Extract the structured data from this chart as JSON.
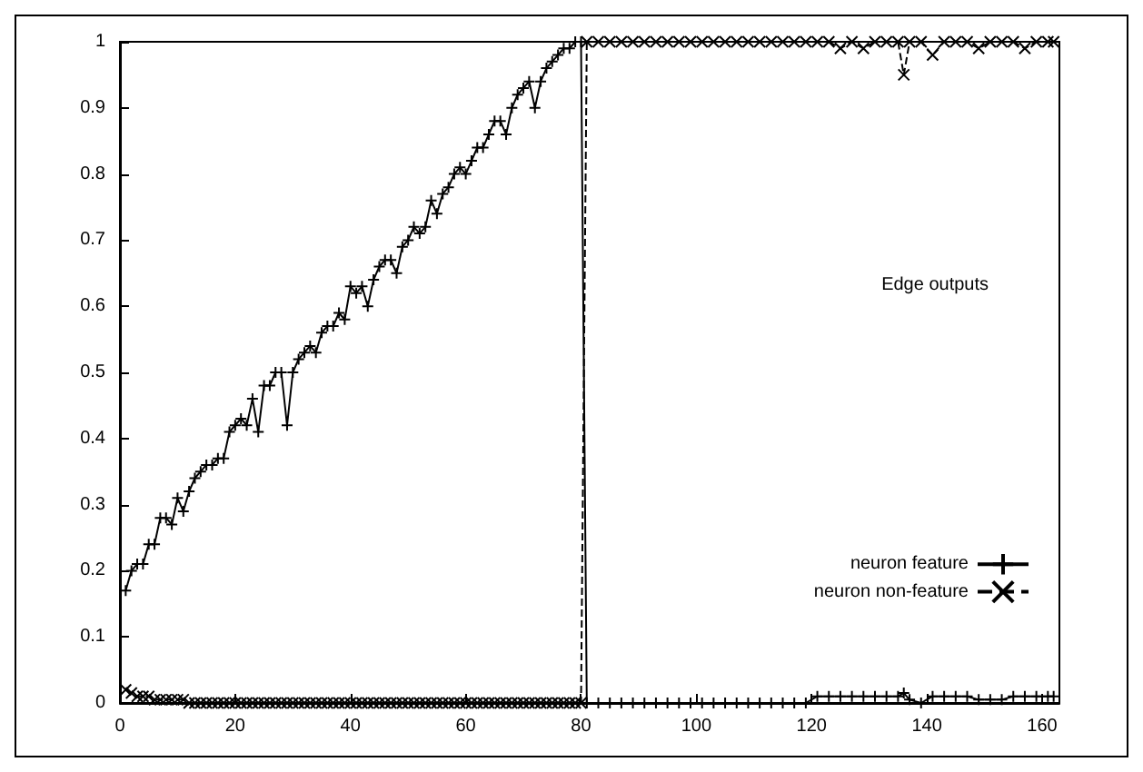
{
  "chart_data": {
    "type": "line",
    "annotations": [
      "Edge outputs"
    ],
    "x": [
      1,
      2,
      3,
      4,
      5,
      6,
      7,
      8,
      9,
      10,
      11,
      12,
      13,
      14,
      15,
      16,
      17,
      18,
      19,
      20,
      21,
      22,
      23,
      24,
      25,
      26,
      27,
      28,
      29,
      30,
      31,
      32,
      33,
      34,
      35,
      36,
      37,
      38,
      39,
      40,
      41,
      42,
      43,
      44,
      45,
      46,
      47,
      48,
      49,
      50,
      51,
      52,
      53,
      54,
      55,
      56,
      57,
      58,
      59,
      60,
      61,
      62,
      63,
      64,
      65,
      66,
      67,
      68,
      69,
      70,
      71,
      72,
      73,
      74,
      75,
      76,
      77,
      78,
      79,
      80,
      81,
      83,
      85,
      87,
      89,
      91,
      93,
      95,
      97,
      99,
      101,
      103,
      105,
      107,
      109,
      111,
      113,
      115,
      117,
      119,
      121,
      123,
      125,
      127,
      129,
      131,
      133,
      135,
      136,
      137,
      139,
      141,
      143,
      145,
      147,
      149,
      151,
      153,
      155,
      157,
      159,
      161,
      162
    ],
    "series": [
      {
        "name": "neuron feature",
        "color": "#000000",
        "marker": "cross",
        "line_style": "solid",
        "values": [
          0.17,
          0.2,
          0.21,
          0.21,
          0.24,
          0.24,
          0.28,
          0.28,
          0.27,
          0.31,
          0.29,
          0.32,
          0.34,
          0.35,
          0.36,
          0.36,
          0.37,
          0.37,
          0.41,
          0.42,
          0.43,
          0.42,
          0.46,
          0.41,
          0.48,
          0.48,
          0.5,
          0.5,
          0.42,
          0.5,
          0.52,
          0.53,
          0.54,
          0.53,
          0.56,
          0.57,
          0.57,
          0.59,
          0.58,
          0.63,
          0.62,
          0.63,
          0.6,
          0.64,
          0.66,
          0.67,
          0.67,
          0.65,
          0.69,
          0.7,
          0.72,
          0.71,
          0.72,
          0.76,
          0.74,
          0.77,
          0.78,
          0.8,
          0.81,
          0.8,
          0.82,
          0.84,
          0.84,
          0.86,
          0.88,
          0.88,
          0.86,
          0.9,
          0.92,
          0.93,
          0.94,
          0.9,
          0.94,
          0.96,
          0.97,
          0.98,
          0.99,
          0.99,
          1,
          1,
          0,
          0,
          0,
          0,
          0,
          0,
          0,
          0,
          0,
          0,
          0,
          0,
          0,
          0,
          0,
          0,
          0,
          0,
          0,
          0,
          0.01,
          0.01,
          0.01,
          0.01,
          0.01,
          0.01,
          0.01,
          0.01,
          0.015,
          0.005,
          0,
          0.01,
          0.01,
          0.01,
          0.01,
          0.005,
          0.005,
          0.005,
          0.01,
          0.01,
          0.01,
          0.01,
          0.01
        ]
      },
      {
        "name": "neuron non-feature",
        "color": "#000000",
        "marker": "x",
        "line_style": "dashed",
        "values": [
          0.02,
          0.015,
          0.01,
          0.01,
          0.01,
          0.005,
          0.005,
          0.005,
          0.005,
          0.005,
          0.005,
          0,
          0,
          0,
          0,
          0,
          0,
          0,
          0,
          0,
          0,
          0,
          0,
          0,
          0,
          0,
          0,
          0,
          0,
          0,
          0,
          0,
          0,
          0,
          0,
          0,
          0,
          0,
          0,
          0,
          0,
          0,
          0,
          0,
          0,
          0,
          0,
          0,
          0,
          0,
          0,
          0,
          0,
          0,
          0,
          0,
          0,
          0,
          0,
          0,
          0,
          0,
          0,
          0,
          0,
          0,
          0,
          0,
          0,
          0,
          0,
          0,
          0,
          0,
          0,
          0,
          0,
          0,
          0,
          0,
          1,
          1,
          1,
          1,
          1,
          1,
          1,
          1,
          1,
          1,
          1,
          1,
          1,
          1,
          1,
          1,
          1,
          1,
          1,
          1,
          1,
          1,
          0.99,
          1,
          0.99,
          1,
          1,
          1,
          0.95,
          1,
          1,
          0.98,
          1,
          1,
          1,
          0.99,
          1,
          1,
          1,
          0.99,
          1,
          1,
          1
        ]
      }
    ],
    "xlim": [
      0,
      163
    ],
    "xticks": [
      0,
      20,
      40,
      60,
      80,
      100,
      120,
      140,
      160
    ],
    "ylim": [
      0,
      1
    ],
    "yticks": [
      0,
      0.1,
      0.2,
      0.3,
      0.4,
      0.5,
      0.6,
      0.7,
      0.8,
      0.9,
      1
    ],
    "grid": false,
    "legend": "right"
  }
}
